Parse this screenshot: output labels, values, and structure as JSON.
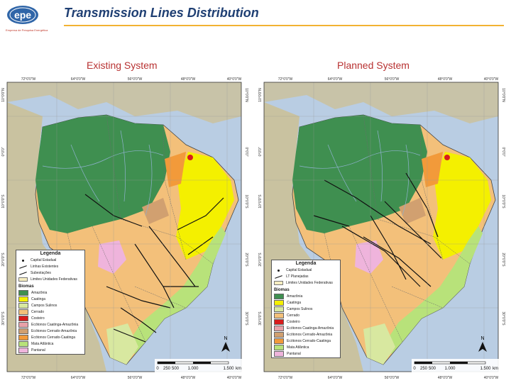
{
  "header": {
    "logo_text": "epe",
    "logo_tagline": "Empresa de Pesquisa Energética",
    "title": "Transmission Lines Distribution"
  },
  "maps": [
    {
      "title": "Existing System",
      "legend": {
        "title": "Legenda",
        "items": [
          "Capital Estadual",
          "Linhas Existentes",
          "Subestações",
          "Limites Unidades Federativas"
        ],
        "biome_title": "Biomas",
        "biomes": [
          {
            "label": "Amazônia",
            "color": "#3f8f50"
          },
          {
            "label": "Caatinga",
            "color": "#f4f000"
          },
          {
            "label": "Campos Sulinos",
            "color": "#d8e8a0"
          },
          {
            "label": "Cerrado",
            "color": "#f3c07a"
          },
          {
            "label": "Costeiro",
            "color": "#d81c1c"
          },
          {
            "label": "Ecótonos Caatinga-Amazônia",
            "color": "#e8a1a8"
          },
          {
            "label": "Ecótonos Cerrado-Amazônia",
            "color": "#d1a070"
          },
          {
            "label": "Ecótonos Cerrado-Caatinga",
            "color": "#f29a3a"
          },
          {
            "label": "Mata Atlântica",
            "color": "#b8e27a"
          },
          {
            "label": "Pantanal",
            "color": "#efb4dc"
          }
        ]
      },
      "scale": {
        "labels": [
          "0",
          "250",
          "500",
          "1.000",
          "1.500"
        ],
        "unit": "km"
      },
      "north": "N",
      "top_coords": [
        "72°0'0\"W",
        "64°0'0\"W",
        "56°0'0\"W",
        "48°0'0\"W",
        "40°0'0\"W"
      ],
      "bottom_coords": [
        "72°0'0\"W",
        "64°0'0\"W",
        "56°0'0\"W",
        "48°0'0\"W",
        "40°0'0\"W"
      ],
      "left_coords": [
        "10°0'0\"N",
        "0°0'0\"",
        "10°0'0\"S",
        "20°0'0\"S",
        "30°0'0\"S"
      ],
      "right_coords": [
        "10°0'0\"N",
        "0°0'0\"",
        "10°0'0\"S",
        "20°0'0\"S",
        "30°0'0\"S"
      ]
    },
    {
      "title": "Planned System",
      "legend": {
        "title": "Legenda",
        "items": [
          "Capital Estadual",
          "LT Planejadas",
          "Limites Unidades Federativas"
        ],
        "biome_title": "Biomas",
        "biomes": [
          {
            "label": "Amazônia",
            "color": "#3f8f50"
          },
          {
            "label": "Caatinga",
            "color": "#f4f000"
          },
          {
            "label": "Campos Sulinos",
            "color": "#d8e8a0"
          },
          {
            "label": "Cerrado",
            "color": "#f3c07a"
          },
          {
            "label": "Costeiro",
            "color": "#d81c1c"
          },
          {
            "label": "Ecótonos Caatinga-Amazônia",
            "color": "#e8a1a8"
          },
          {
            "label": "Ecótonos Cerrado-Amazônia",
            "color": "#d1a070"
          },
          {
            "label": "Ecótonos Cerrado-Caatinga",
            "color": "#f29a3a"
          },
          {
            "label": "Mata Atlântica",
            "color": "#b8e27a"
          },
          {
            "label": "Pantanal",
            "color": "#efb4dc"
          }
        ]
      },
      "scale": {
        "labels": [
          "0",
          "250",
          "500",
          "1.000",
          "1.500"
        ],
        "unit": "km"
      },
      "north": "N",
      "top_coords": [
        "72°0'0\"W",
        "64°0'0\"W",
        "56°0'0\"W",
        "48°0'0\"W",
        "40°0'0\"W"
      ],
      "bottom_coords": [
        "72°0'0\"W",
        "64°0'0\"W",
        "56°0'0\"W",
        "48°0'0\"W",
        "40°0'0\"W"
      ],
      "left_coords": [
        "10°0'0\"N",
        "0°0'0\"",
        "10°0'0\"S",
        "20°0'0\"S",
        "30°0'0\"S"
      ],
      "right_coords": [
        "10°0'0\"N",
        "0°0'0\"",
        "10°0'0\"S",
        "20°0'0\"S",
        "30°0'0\"S"
      ]
    }
  ]
}
